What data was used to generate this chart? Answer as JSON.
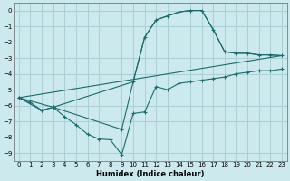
{
  "xlabel": "Humidex (Indice chaleur)",
  "bg_color": "#cce9ed",
  "grid_color": "#aacfd5",
  "line_color": "#1a6b6b",
  "xlim": [
    -0.5,
    23.5
  ],
  "ylim": [
    -9.5,
    0.5
  ],
  "yticks": [
    0,
    -1,
    -2,
    -3,
    -4,
    -5,
    -6,
    -7,
    -8,
    -9
  ],
  "xticks": [
    0,
    1,
    2,
    3,
    4,
    5,
    6,
    7,
    8,
    9,
    10,
    11,
    12,
    13,
    14,
    15,
    16,
    17,
    18,
    19,
    20,
    21,
    22,
    23
  ],
  "series1_x": [
    0,
    1,
    2,
    3,
    4,
    5,
    6,
    7,
    8,
    9,
    10,
    11,
    12,
    13,
    14,
    15,
    16,
    17,
    18,
    19,
    20,
    21,
    22,
    23
  ],
  "series1_y": [
    -5.5,
    -5.8,
    -6.3,
    -6.1,
    -6.7,
    -7.2,
    -7.8,
    -8.1,
    -8.15,
    -9.1,
    -6.5,
    -6.4,
    -4.8,
    -5.0,
    -4.6,
    -4.5,
    -4.4,
    -4.3,
    -4.2,
    -4.0,
    -3.9,
    -3.8,
    -3.8,
    -3.7
  ],
  "series2_x": [
    0,
    2,
    3,
    9,
    10,
    11,
    12,
    13,
    14,
    15,
    16,
    17,
    18,
    19,
    20,
    21,
    22,
    23
  ],
  "series2_y": [
    -5.5,
    -6.3,
    -6.1,
    -7.5,
    -4.5,
    -1.7,
    -0.6,
    -0.35,
    -0.1,
    0.0,
    0.0,
    -1.2,
    -2.6,
    -2.7,
    -2.7,
    -2.8,
    -2.8,
    -2.85
  ],
  "series3_x": [
    0,
    3,
    10,
    11,
    12,
    13,
    14,
    15,
    16,
    17,
    18,
    19,
    20,
    21,
    22,
    23
  ],
  "series3_y": [
    -5.5,
    -6.1,
    -4.5,
    -1.7,
    -0.6,
    -0.35,
    -0.1,
    0.0,
    0.0,
    -1.2,
    -2.6,
    -2.7,
    -2.7,
    -2.8,
    -2.8,
    -2.85
  ],
  "series4_x": [
    0,
    23
  ],
  "series4_y": [
    -5.5,
    -2.85
  ]
}
